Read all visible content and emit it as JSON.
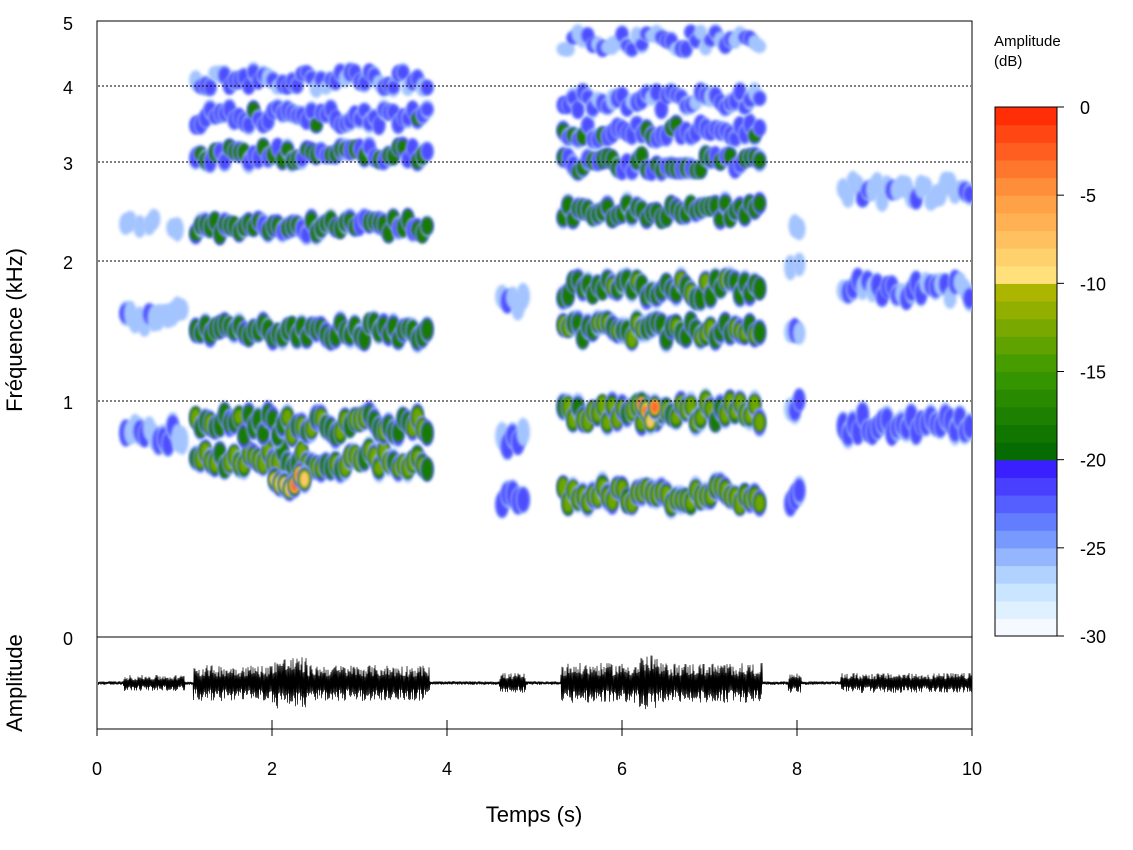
{
  "chart_data": {
    "type": "spectrogram",
    "xlabel": "Temps (s)",
    "ylabel": "Fréquence (kHz)",
    "xlim": [
      0,
      10
    ],
    "ylim": [
      0,
      5
    ],
    "x_ticks": [
      "0",
      "2",
      "4",
      "6",
      "8",
      "10"
    ],
    "y_ticks": [
      "1",
      "2",
      "3",
      "4",
      "5"
    ],
    "y_scale": "nonlinear (expanded low frequencies)",
    "gridlines_khz": [
      1,
      2,
      3,
      4
    ],
    "colorbar": {
      "title_line1": "Amplitude",
      "title_line2": "(dB)",
      "range": [
        -30,
        0
      ],
      "ticks": [
        "0",
        "-5",
        "-10",
        "-15",
        "-20",
        "-25",
        "-30"
      ],
      "colors": {
        "loud": "#ff2200",
        "mid": "#ffe880",
        "olive": "#b8b800",
        "green": "#006600",
        "blue": "#3311ff",
        "faint": "#ffffff"
      }
    },
    "oscillogram": {
      "ylabel": "Amplitude",
      "y_tick": "0",
      "color": "#000000"
    },
    "syllables": [
      {
        "t": [
          0.3,
          1.0
        ],
        "f": [
          0.85,
          1.6,
          2.35
        ],
        "level": -22
      },
      {
        "t": [
          1.1,
          3.8
        ],
        "f": [
          0.75,
          0.9,
          1.5,
          2.35,
          3.1,
          3.6,
          4.1
        ],
        "level": -12
      },
      {
        "t": [
          2.0,
          2.4
        ],
        "f": [
          0.65
        ],
        "level": -4
      },
      {
        "t": [
          4.6,
          4.9
        ],
        "f": [
          0.6,
          0.85,
          1.7
        ],
        "level": -20
      },
      {
        "t": [
          5.3,
          7.6
        ],
        "f": [
          0.6,
          0.95,
          1.5,
          1.8,
          2.5,
          3.0,
          3.4,
          3.8,
          4.7
        ],
        "level": -10
      },
      {
        "t": [
          6.2,
          6.4
        ],
        "f": [
          0.95
        ],
        "level": -2
      },
      {
        "t": [
          7.9,
          8.05
        ],
        "f": [
          0.6,
          1.0,
          1.5,
          2.0,
          2.4
        ],
        "level": -20
      },
      {
        "t": [
          8.5,
          10.0
        ],
        "f": [
          0.9,
          1.8,
          2.7
        ],
        "level": -20
      }
    ]
  }
}
